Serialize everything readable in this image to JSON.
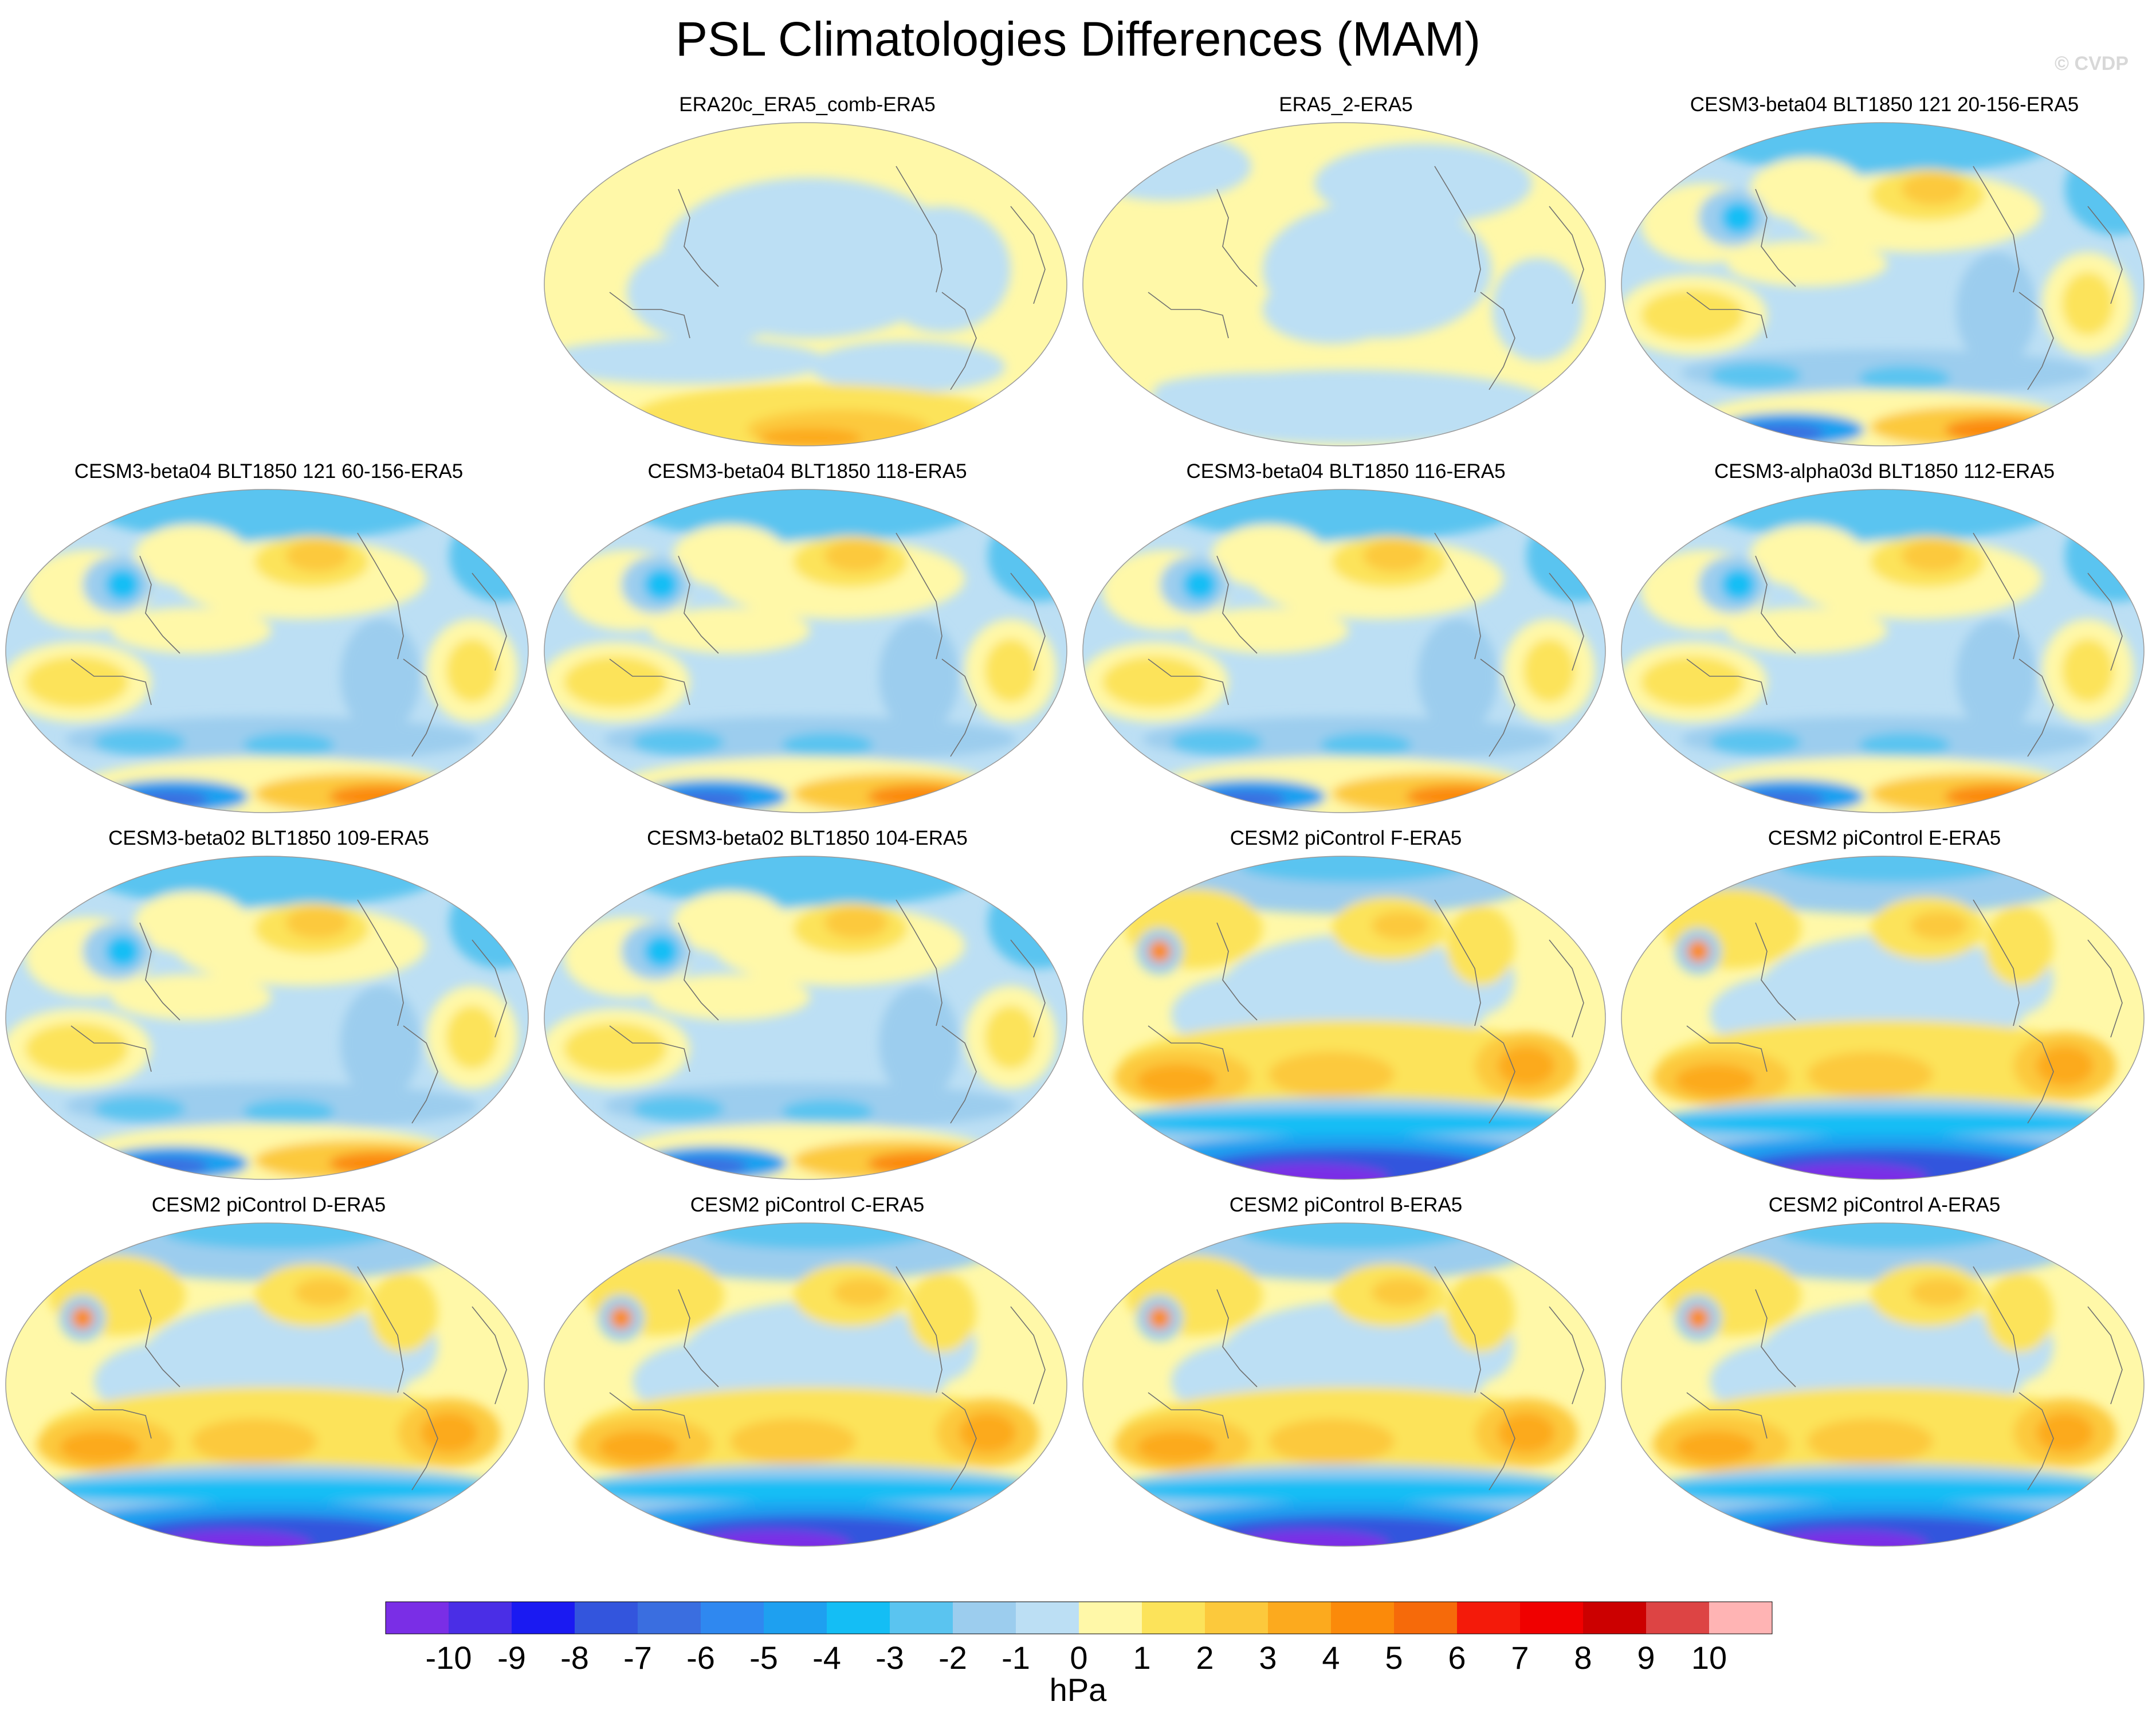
{
  "chart_data": {
    "type": "contour-map-panels",
    "title": "PSL Climatologies Differences (MAM)",
    "credit": "© CVDP",
    "colorbar": {
      "label": "hPa",
      "levels": [
        -10,
        -9,
        -8,
        -7,
        -6,
        -5,
        -4,
        -3,
        -2,
        -1,
        0,
        1,
        2,
        3,
        4,
        5,
        6,
        7,
        8,
        9,
        10
      ],
      "colors": [
        "#7a2ee6",
        "#4a2ee6",
        "#1a1af2",
        "#3355dd",
        "#3a6ee0",
        "#2f88f0",
        "#1ea0f0",
        "#14bef5",
        "#5ac4f0",
        "#9ccdee",
        "#bcdff4",
        "#fff8a8",
        "#fce35a",
        "#fcc93c",
        "#fcaa1e",
        "#fb8a0a",
        "#f66a0a",
        "#f41a0a",
        "#f00000",
        "#cc0000",
        "#dd4444",
        "#ffb4b4"
      ]
    },
    "panels": [
      {
        "title": "ERA20c_ERA5_comb-ERA5",
        "row": 0,
        "col": 1,
        "pattern": "reanalysis"
      },
      {
        "title": "ERA5_2-ERA5",
        "row": 0,
        "col": 2,
        "pattern": "era5"
      },
      {
        "title": "CESM3-beta04 BLT1850 121 20-156-ERA5",
        "row": 0,
        "col": 3,
        "pattern": "cesm3"
      },
      {
        "title": "CESM3-beta04 BLT1850 121 60-156-ERA5",
        "row": 1,
        "col": 0,
        "pattern": "cesm3"
      },
      {
        "title": "CESM3-beta04 BLT1850 118-ERA5",
        "row": 1,
        "col": 1,
        "pattern": "cesm3"
      },
      {
        "title": "CESM3-beta04 BLT1850 116-ERA5",
        "row": 1,
        "col": 2,
        "pattern": "cesm3"
      },
      {
        "title": "CESM3-alpha03d BLT1850 112-ERA5",
        "row": 1,
        "col": 3,
        "pattern": "cesm3"
      },
      {
        "title": "CESM3-beta02 BLT1850 109-ERA5",
        "row": 2,
        "col": 0,
        "pattern": "cesm3"
      },
      {
        "title": "CESM3-beta02 BLT1850 104-ERA5",
        "row": 2,
        "col": 1,
        "pattern": "cesm3"
      },
      {
        "title": "CESM2 piControl F-ERA5",
        "row": 2,
        "col": 2,
        "pattern": "cesm2"
      },
      {
        "title": "CESM2 piControl E-ERA5",
        "row": 2,
        "col": 3,
        "pattern": "cesm2"
      },
      {
        "title": "CESM2 piControl D-ERA5",
        "row": 3,
        "col": 0,
        "pattern": "cesm2"
      },
      {
        "title": "CESM2 piControl C-ERA5",
        "row": 3,
        "col": 1,
        "pattern": "cesm2"
      },
      {
        "title": "CESM2 piControl B-ERA5",
        "row": 3,
        "col": 2,
        "pattern": "cesm2"
      },
      {
        "title": "CESM2 piControl A-ERA5",
        "row": 3,
        "col": 3,
        "pattern": "cesm2"
      }
    ]
  }
}
